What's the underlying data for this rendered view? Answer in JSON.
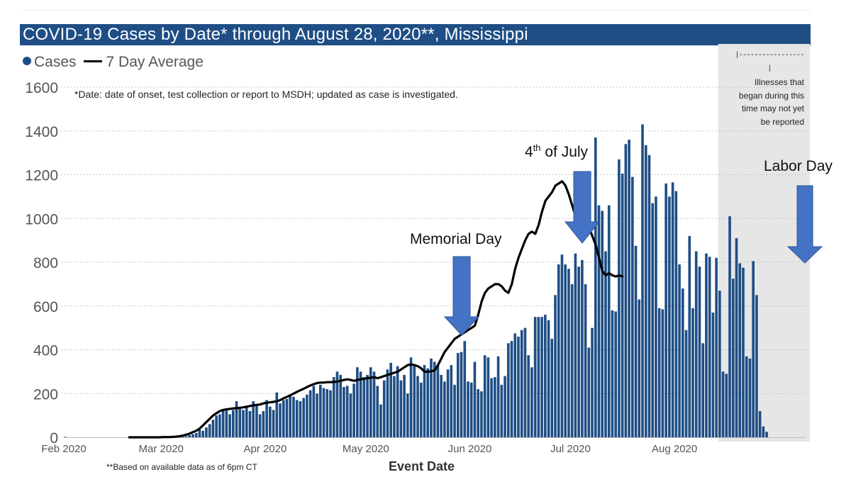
{
  "title": "COVID-19 Cases by Date* through August 28, 2020**, Mississippi",
  "legend": {
    "bar_label": "Cases",
    "line_label": "7 Day Average"
  },
  "notes": {
    "date_note": "*Date: date of onset, test collection or report to MSDH; updated as case is investigated.",
    "based_note": "**Based on available data as of 6pm CT",
    "shaded_dashes": "|-----------------|",
    "shaded_note": "Illnesses that began during this time may not yet be reported"
  },
  "annotations": {
    "memorial": "Memorial Day",
    "july_prefix": "4",
    "july_sup": "th",
    "july_suffix": " of July",
    "labor": "Labor Day"
  },
  "colors": {
    "bar": "#1f4e85",
    "line": "#000000",
    "title_bg": "#1f4e85",
    "arrow": "#4472c4",
    "shade": "#e6e6e6"
  },
  "chart_data": {
    "type": "bar",
    "title": "COVID-19 Cases by Date* through August 28, 2020**, Mississippi",
    "xlabel": "Event Date",
    "ylabel": "",
    "ylim": [
      0,
      1600
    ],
    "yticks": [
      0,
      200,
      400,
      600,
      800,
      1000,
      1200,
      1400,
      1600
    ],
    "x_ticks": [
      "Feb 2020",
      "Mar 2020",
      "Apr 2020",
      "May 2020",
      "Jun 2020",
      "Jul 2020",
      "Aug 2020"
    ],
    "x_start": "2020-02-01",
    "x_end": "2020-09-04",
    "grid": true,
    "legend": "top-left",
    "shaded_region": [
      "2020-08-14",
      "2020-09-04"
    ],
    "series": [
      {
        "name": "Cases",
        "type": "bar",
        "start_date": "2020-02-01",
        "values": [
          2,
          0,
          0,
          0,
          0,
          0,
          0,
          0,
          0,
          0,
          0,
          0,
          0,
          0,
          0,
          0,
          0,
          0,
          0,
          0,
          0,
          0,
          0,
          0,
          0,
          0,
          0,
          0,
          0,
          0,
          1,
          2,
          2,
          1,
          2,
          3,
          5,
          10,
          15,
          20,
          35,
          30,
          45,
          60,
          80,
          100,
          105,
          120,
          125,
          105,
          125,
          165,
          130,
          125,
          140,
          120,
          165,
          145,
          105,
          120,
          170,
          140,
          125,
          205,
          155,
          170,
          175,
          190,
          185,
          170,
          165,
          180,
          195,
          215,
          235,
          200,
          240,
          225,
          220,
          215,
          275,
          300,
          285,
          230,
          235,
          200,
          245,
          320,
          300,
          275,
          285,
          320,
          300,
          235,
          150,
          260,
          310,
          340,
          280,
          325,
          260,
          285,
          200,
          365,
          325,
          280,
          250,
          330,
          315,
          360,
          345,
          330,
          285,
          255,
          310,
          330,
          240,
          385,
          390,
          440,
          255,
          250,
          345,
          220,
          210,
          375,
          365,
          270,
          275,
          370,
          240,
          280,
          430,
          440,
          475,
          460,
          490,
          500,
          375,
          320,
          550,
          550,
          550,
          560,
          535,
          450,
          650,
          790,
          835,
          790,
          770,
          700,
          840,
          780,
          810,
          700,
          410,
          500,
          1370,
          1060,
          1035,
          850,
          1060,
          580,
          575,
          1270,
          1205,
          1340,
          1360,
          1190,
          875,
          630,
          1430,
          1335,
          1290,
          1070,
          1100,
          590,
          585,
          1160,
          1100,
          1165,
          1125,
          790,
          680,
          490,
          920,
          590,
          850,
          780,
          430,
          840,
          825,
          570,
          820,
          670,
          300,
          290,
          1010,
          725,
          910,
          795,
          775,
          370,
          360,
          805,
          650,
          120,
          50,
          25
        ]
      },
      {
        "name": "7 Day Average",
        "type": "line",
        "start_date": "2020-02-20",
        "values": [
          0,
          0,
          0,
          0,
          0,
          0,
          0,
          0,
          0,
          0,
          1,
          1,
          1,
          2,
          3,
          5,
          8,
          12,
          17,
          24,
          30,
          40,
          55,
          70,
          85,
          100,
          110,
          120,
          125,
          128,
          130,
          132,
          133,
          135,
          137,
          140,
          143,
          146,
          148,
          150,
          155,
          158,
          160,
          162,
          165,
          170,
          178,
          185,
          192,
          200,
          208,
          215,
          222,
          230,
          237,
          243,
          248,
          250,
          250,
          252,
          252,
          253,
          255,
          258,
          262,
          265,
          262,
          258,
          262,
          265,
          268,
          270,
          272,
          275,
          270,
          275,
          280,
          285,
          290,
          295,
          300,
          310,
          320,
          330,
          333,
          330,
          325,
          315,
          300,
          300,
          302,
          305,
          330,
          360,
          390,
          410,
          430,
          450,
          460,
          470,
          480,
          490,
          500,
          510,
          560,
          620,
          660,
          680,
          690,
          700,
          700,
          690,
          670,
          660,
          700,
          770,
          820,
          860,
          900,
          930,
          940,
          930,
          970,
          1030,
          1080,
          1100,
          1120,
          1150,
          1160,
          1170,
          1150,
          1110,
          1060,
          1010,
          980,
          970,
          975,
          960,
          920,
          880,
          820,
          760,
          740,
          750,
          740,
          735,
          740,
          735
        ]
      }
    ]
  }
}
